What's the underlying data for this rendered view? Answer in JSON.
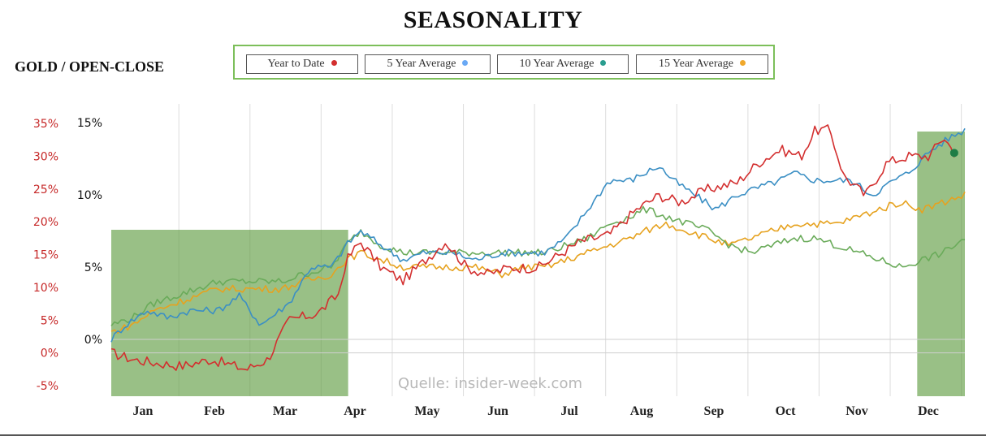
{
  "chart_data": {
    "type": "line",
    "title": "SEASONALITY",
    "subtitle": "GOLD / OPEN-CLOSE",
    "watermark": "Quelle: insider-week.com",
    "x_ticks": [
      "Jan",
      "Feb",
      "Mar",
      "Apr",
      "May",
      "Jun",
      "Jul",
      "Aug",
      "Sep",
      "Oct",
      "Nov",
      "Dec"
    ],
    "y_left": {
      "ticks": [
        "35%",
        "30%",
        "25%",
        "20%",
        "15%",
        "10%",
        "5%",
        "0%",
        "-5%"
      ],
      "values": [
        35,
        30,
        25,
        20,
        15,
        10,
        5,
        0,
        -5
      ],
      "color": "#c62828"
    },
    "y_right": {
      "ticks": [
        "15%",
        "10%",
        "5%",
        "0%"
      ],
      "values": [
        15,
        10,
        5,
        0
      ],
      "color": "#111111"
    },
    "shaded_periods": [
      {
        "start": "Jan",
        "end": "Apr",
        "color": "#5a9a3c"
      },
      {
        "start": "Dec (late Nov)",
        "end": "Dec end",
        "color": "#5a9a3c"
      }
    ],
    "series": [
      {
        "name": "Year to Date",
        "color": "#d32f2f",
        "axis": "left",
        "anchors": [
          [
            0,
            0
          ],
          [
            0.3,
            -1
          ],
          [
            0.6,
            -1.5
          ],
          [
            1,
            -2
          ],
          [
            1.4,
            -1
          ],
          [
            1.9,
            -2.5
          ],
          [
            2.2,
            -1
          ],
          [
            2.5,
            5
          ],
          [
            2.9,
            6
          ],
          [
            3.2,
            9
          ],
          [
            3.3,
            14
          ],
          [
            3.5,
            17
          ],
          [
            3.8,
            13
          ],
          [
            4.1,
            11
          ],
          [
            4.4,
            14
          ],
          [
            4.7,
            17
          ],
          [
            5,
            13
          ],
          [
            5.3,
            12
          ],
          [
            5.6,
            13
          ],
          [
            6,
            13
          ],
          [
            6.3,
            15
          ],
          [
            6.6,
            17
          ],
          [
            7.0,
            18
          ],
          [
            7.4,
            22
          ],
          [
            7.7,
            24
          ],
          [
            8.0,
            23
          ],
          [
            8.4,
            25
          ],
          [
            8.8,
            26
          ],
          [
            9.1,
            29
          ],
          [
            9.4,
            31
          ],
          [
            9.7,
            30
          ],
          [
            9.9,
            34
          ],
          [
            10.1,
            34
          ],
          [
            10.3,
            27
          ],
          [
            10.6,
            24
          ],
          [
            10.9,
            29
          ],
          [
            11.2,
            30
          ],
          [
            11.5,
            30
          ],
          [
            11.7,
            33
          ],
          [
            11.85,
            30.5
          ]
        ],
        "endpoint": [
          11.85,
          30.5
        ]
      },
      {
        "name": "5 Year Average",
        "color": "#3b8fc4",
        "axis": "right",
        "anchors": [
          [
            0,
            0
          ],
          [
            0.2,
            1
          ],
          [
            0.5,
            2
          ],
          [
            0.8,
            1.5
          ],
          [
            1.1,
            2
          ],
          [
            1.5,
            2
          ],
          [
            1.8,
            3
          ],
          [
            2.1,
            1
          ],
          [
            2.5,
            2.5
          ],
          [
            2.8,
            5
          ],
          [
            3.1,
            5
          ],
          [
            3.3,
            6.5
          ],
          [
            3.5,
            7.5
          ],
          [
            3.8,
            6.5
          ],
          [
            4.1,
            5.5
          ],
          [
            4.4,
            6
          ],
          [
            4.8,
            6
          ],
          [
            5.1,
            5.5
          ],
          [
            5.5,
            6
          ],
          [
            5.8,
            6
          ],
          [
            6.1,
            6
          ],
          [
            6.4,
            7
          ],
          [
            6.7,
            9
          ],
          [
            7,
            11
          ],
          [
            7.3,
            11
          ],
          [
            7.5,
            11.5
          ],
          [
            7.7,
            12
          ],
          [
            7.9,
            11
          ],
          [
            8.2,
            10
          ],
          [
            8.5,
            9
          ],
          [
            8.8,
            10
          ],
          [
            9.1,
            10.5
          ],
          [
            9.4,
            11
          ],
          [
            9.6,
            11.5
          ],
          [
            9.9,
            11
          ],
          [
            10.1,
            11
          ],
          [
            10.4,
            11
          ],
          [
            10.7,
            10
          ],
          [
            11,
            11
          ],
          [
            11.2,
            11.5
          ],
          [
            11.5,
            13
          ],
          [
            11.8,
            14
          ],
          [
            12,
            14.5
          ]
        ]
      },
      {
        "name": "10 Year Average",
        "color": "#6aab5a",
        "axis": "right",
        "anchors": [
          [
            0,
            1
          ],
          [
            0.3,
            1.5
          ],
          [
            0.6,
            2.5
          ],
          [
            0.9,
            3
          ],
          [
            1.2,
            3.5
          ],
          [
            1.5,
            4
          ],
          [
            1.8,
            4
          ],
          [
            2.1,
            4
          ],
          [
            2.4,
            4
          ],
          [
            2.7,
            4.5
          ],
          [
            3.1,
            5
          ],
          [
            3.3,
            6.5
          ],
          [
            3.5,
            7.5
          ],
          [
            3.8,
            6.5
          ],
          [
            4.1,
            6
          ],
          [
            4.4,
            6
          ],
          [
            4.8,
            6
          ],
          [
            5.1,
            6
          ],
          [
            5.5,
            6
          ],
          [
            5.8,
            6
          ],
          [
            6.1,
            6
          ],
          [
            6.4,
            6.5
          ],
          [
            6.7,
            7
          ],
          [
            7,
            8
          ],
          [
            7.3,
            8.5
          ],
          [
            7.5,
            9
          ],
          [
            7.8,
            8.5
          ],
          [
            8.1,
            8
          ],
          [
            8.4,
            7.5
          ],
          [
            8.7,
            6.5
          ],
          [
            9,
            6
          ],
          [
            9.3,
            6.5
          ],
          [
            9.6,
            7
          ],
          [
            9.9,
            7
          ],
          [
            10.2,
            6.5
          ],
          [
            10.5,
            6
          ],
          [
            10.8,
            5.5
          ],
          [
            11.1,
            5
          ],
          [
            11.4,
            5.5
          ],
          [
            11.7,
            6
          ],
          [
            12,
            7
          ]
        ]
      },
      {
        "name": "15 Year Average",
        "color": "#e6a21f",
        "axis": "right",
        "anchors": [
          [
            0,
            0.5
          ],
          [
            0.3,
            1
          ],
          [
            0.6,
            2
          ],
          [
            0.9,
            2.5
          ],
          [
            1.2,
            3
          ],
          [
            1.5,
            3.5
          ],
          [
            1.8,
            3.5
          ],
          [
            2.1,
            3.5
          ],
          [
            2.4,
            3.5
          ],
          [
            2.7,
            4
          ],
          [
            3.1,
            4.5
          ],
          [
            3.3,
            5.5
          ],
          [
            3.5,
            6
          ],
          [
            3.8,
            5.5
          ],
          [
            4.1,
            5
          ],
          [
            4.4,
            5
          ],
          [
            4.8,
            5
          ],
          [
            5.1,
            5
          ],
          [
            5.5,
            4.5
          ],
          [
            5.8,
            5
          ],
          [
            6.1,
            5
          ],
          [
            6.4,
            5.5
          ],
          [
            6.7,
            6
          ],
          [
            7,
            6.5
          ],
          [
            7.3,
            7
          ],
          [
            7.5,
            7.5
          ],
          [
            7.8,
            8
          ],
          [
            8.1,
            7.5
          ],
          [
            8.4,
            7
          ],
          [
            8.7,
            6.5
          ],
          [
            9,
            7
          ],
          [
            9.3,
            7.5
          ],
          [
            9.6,
            8
          ],
          [
            9.9,
            8
          ],
          [
            10.2,
            8
          ],
          [
            10.5,
            8.5
          ],
          [
            10.8,
            9
          ],
          [
            11.1,
            9.5
          ],
          [
            11.4,
            9
          ],
          [
            11.7,
            9.5
          ],
          [
            12,
            10
          ]
        ]
      }
    ]
  },
  "legend": [
    {
      "label": "Year to Date",
      "color": "#d32f2f"
    },
    {
      "label": "5 Year Average",
      "color": "#6aa9f5"
    },
    {
      "label": "10 Year Average",
      "color": "#2a9d8f"
    },
    {
      "label": "15 Year Average",
      "color": "#f0a82b"
    }
  ]
}
